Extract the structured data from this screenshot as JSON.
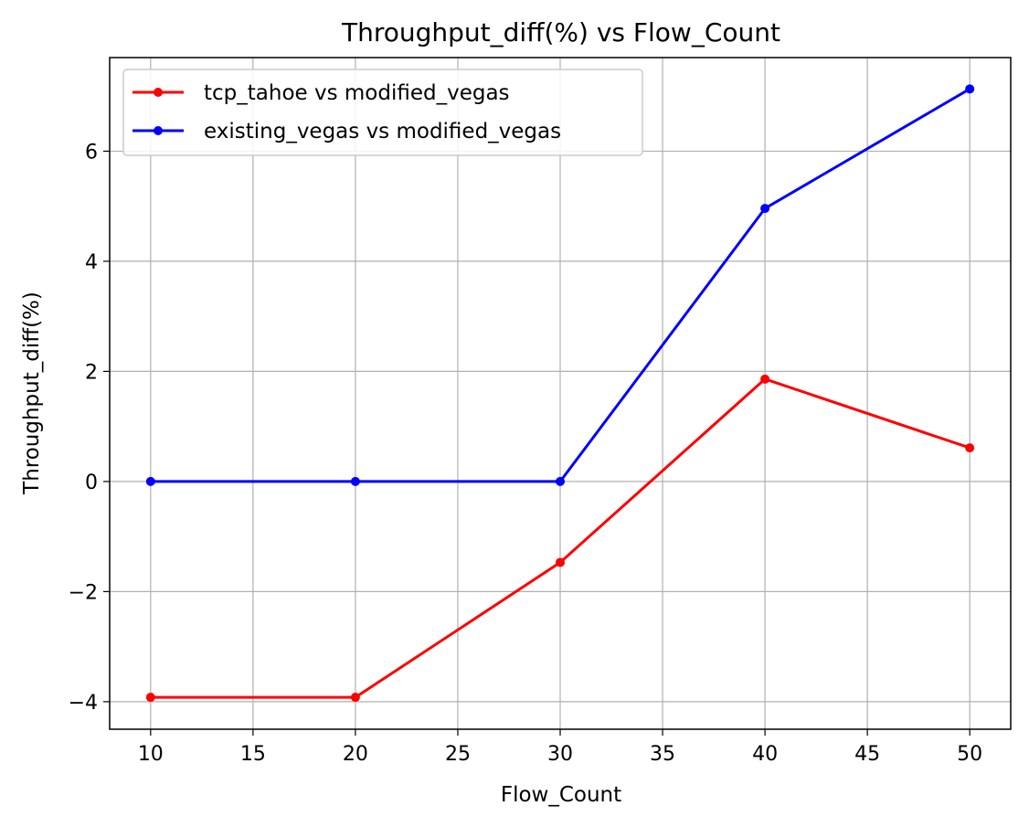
{
  "chart_data": {
    "type": "line",
    "title": "Throughput_diff(%) vs Flow_Count",
    "xlabel": "Flow_Count",
    "ylabel": "Throughput_diff(%)",
    "xlim": [
      8,
      52
    ],
    "ylim": [
      -4.5,
      7.7
    ],
    "xticks": [
      10,
      15,
      20,
      25,
      30,
      35,
      40,
      45,
      50
    ],
    "yticks": [
      -4,
      -2,
      0,
      2,
      4,
      6
    ],
    "grid": true,
    "legend_position": "top-left",
    "x": [
      10,
      20,
      30,
      40,
      50
    ],
    "series": [
      {
        "name": "tcp_tahoe vs modified_vegas",
        "color": "#ff0000",
        "marker": "circle",
        "values": [
          -3.92,
          -3.92,
          -1.47,
          1.86,
          0.61
        ]
      },
      {
        "name": "existing_vegas vs modified_vegas",
        "color": "#0000ff",
        "marker": "circle",
        "values": [
          0.0,
          0.0,
          0.0,
          4.96,
          7.13
        ]
      }
    ]
  }
}
